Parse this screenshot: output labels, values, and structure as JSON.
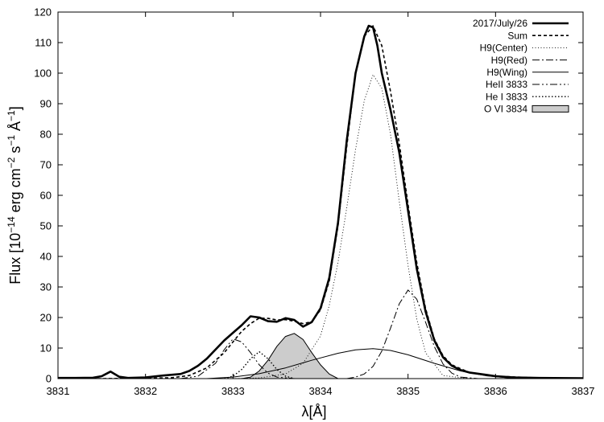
{
  "chart_data": {
    "type": "line",
    "xlabel": "λ[Å]",
    "ylabel_parts": [
      "Flux [10",
      "−14",
      " erg cm",
      "−2",
      " s",
      "−1",
      " Å",
      "−1",
      "]"
    ],
    "xlim": [
      3831,
      3837
    ],
    "ylim": [
      0,
      120
    ],
    "xticks": [
      3831,
      3832,
      3833,
      3834,
      3835,
      3836,
      3837
    ],
    "yticks": [
      0,
      10,
      20,
      30,
      40,
      50,
      60,
      70,
      80,
      90,
      100,
      110,
      120
    ],
    "grid": false,
    "legend_position": "top-right",
    "series": [
      {
        "name": "2017/July/26",
        "style": "thick-solid",
        "x": [
          3831.0,
          3831.2,
          3831.4,
          3831.5,
          3831.6,
          3831.7,
          3831.8,
          3832.0,
          3832.2,
          3832.4,
          3832.5,
          3832.6,
          3832.7,
          3832.8,
          3832.9,
          3833.0,
          3833.1,
          3833.2,
          3833.3,
          3833.4,
          3833.5,
          3833.6,
          3833.7,
          3833.8,
          3833.9,
          3834.0,
          3834.1,
          3834.2,
          3834.3,
          3834.4,
          3834.5,
          3834.55,
          3834.6,
          3834.65,
          3834.7,
          3834.8,
          3834.9,
          3835.0,
          3835.1,
          3835.2,
          3835.3,
          3835.4,
          3835.5,
          3835.6,
          3835.7,
          3835.8,
          3835.9,
          3836.0,
          3836.2,
          3836.5,
          3837.0
        ],
        "y": [
          0.2,
          0.2,
          0.3,
          0.8,
          2.3,
          0.6,
          0.2,
          0.4,
          1.0,
          1.5,
          2.5,
          4.2,
          6.5,
          9.5,
          12.5,
          15.0,
          17.5,
          20.4,
          20.0,
          18.8,
          18.6,
          19.8,
          19.2,
          17.0,
          18.5,
          23.0,
          33.0,
          51.0,
          78.0,
          100.0,
          112.0,
          115.5,
          115.0,
          109.0,
          100.0,
          88.0,
          74.0,
          55.0,
          36.0,
          22.0,
          12.5,
          7.0,
          4.2,
          2.8,
          2.0,
          1.6,
          1.2,
          0.8,
          0.4,
          0.2,
          0.1
        ]
      },
      {
        "name": "Sum",
        "style": "dashed",
        "x": [
          3831.0,
          3831.5,
          3832.0,
          3832.3,
          3832.5,
          3832.7,
          3832.9,
          3833.0,
          3833.1,
          3833.2,
          3833.3,
          3833.4,
          3833.5,
          3833.6,
          3833.7,
          3833.8,
          3833.9,
          3834.0,
          3834.1,
          3834.2,
          3834.3,
          3834.4,
          3834.5,
          3834.6,
          3834.7,
          3834.8,
          3834.9,
          3835.0,
          3835.1,
          3835.2,
          3835.3,
          3835.4,
          3835.5,
          3835.7,
          3836.0,
          3836.5,
          3837.0
        ],
        "y": [
          0.0,
          0.0,
          0.1,
          0.3,
          1.0,
          3.5,
          8.5,
          12.0,
          15.5,
          18.0,
          19.8,
          19.7,
          19.2,
          19.3,
          18.8,
          18.0,
          18.6,
          22.5,
          32.0,
          50.0,
          76.0,
          100.0,
          112.0,
          115.5,
          109.0,
          94.0,
          77.0,
          57.0,
          38.0,
          23.0,
          13.0,
          7.5,
          4.5,
          2.0,
          0.8,
          0.2,
          0.0
        ]
      },
      {
        "name": "H9(Center)",
        "style": "fine-dotted",
        "x": [
          3833.0,
          3833.3,
          3833.6,
          3833.8,
          3834.0,
          3834.1,
          3834.2,
          3834.3,
          3834.4,
          3834.5,
          3834.6,
          3834.7,
          3834.8,
          3834.9,
          3835.0,
          3835.1,
          3835.2,
          3835.4,
          3835.7
        ],
        "y": [
          0.0,
          0.2,
          1.5,
          5.0,
          14.0,
          24.0,
          38.0,
          56.0,
          75.0,
          91.0,
          99.5,
          95.0,
          80.0,
          58.0,
          37.0,
          19.5,
          8.5,
          1.0,
          0.0
        ]
      },
      {
        "name": "H9(Red)",
        "style": "dash-dot",
        "x": [
          3834.3,
          3834.4,
          3834.5,
          3834.6,
          3834.7,
          3834.8,
          3834.9,
          3835.0,
          3835.1,
          3835.2,
          3835.3,
          3835.4,
          3835.5,
          3835.6,
          3835.8
        ],
        "y": [
          0.0,
          0.5,
          1.5,
          4.0,
          9.0,
          16.5,
          24.5,
          29.0,
          26.0,
          18.5,
          10.5,
          4.8,
          1.8,
          0.5,
          0.0
        ]
      },
      {
        "name": "H9(Wing)",
        "style": "thin-solid",
        "x": [
          3832.7,
          3833.0,
          3833.3,
          3833.6,
          3833.9,
          3834.2,
          3834.4,
          3834.6,
          3834.8,
          3835.0,
          3835.3,
          3835.6,
          3835.9,
          3836.2
        ],
        "y": [
          0.0,
          0.5,
          1.6,
          3.5,
          6.0,
          8.3,
          9.4,
          9.8,
          9.2,
          7.8,
          5.0,
          2.5,
          0.9,
          0.1
        ]
      },
      {
        "name": "HeII 3833",
        "style": "dash-dot-dot",
        "x": [
          3832.4,
          3832.6,
          3832.8,
          3832.9,
          3833.0,
          3833.1,
          3833.2,
          3833.3,
          3833.4,
          3833.5,
          3833.7
        ],
        "y": [
          0.0,
          0.8,
          5.0,
          9.5,
          13.0,
          12.0,
          8.5,
          4.5,
          1.8,
          0.5,
          0.0
        ]
      },
      {
        "name": "He I 3833",
        "style": "dotted",
        "x": [
          3832.9,
          3833.0,
          3833.1,
          3833.2,
          3833.3,
          3833.4,
          3833.5,
          3833.6,
          3833.7
        ],
        "y": [
          0.0,
          0.8,
          3.0,
          6.5,
          8.8,
          6.5,
          3.0,
          0.8,
          0.0
        ]
      },
      {
        "name": "O VI 3834",
        "style": "filled-gray",
        "x": [
          3833.1,
          3833.2,
          3833.3,
          3833.4,
          3833.5,
          3833.6,
          3833.7,
          3833.8,
          3833.9,
          3834.0,
          3834.1,
          3834.2
        ],
        "y": [
          0.0,
          0.5,
          2.5,
          6.0,
          10.5,
          13.8,
          14.8,
          12.8,
          8.5,
          4.5,
          1.5,
          0.0
        ]
      }
    ]
  }
}
